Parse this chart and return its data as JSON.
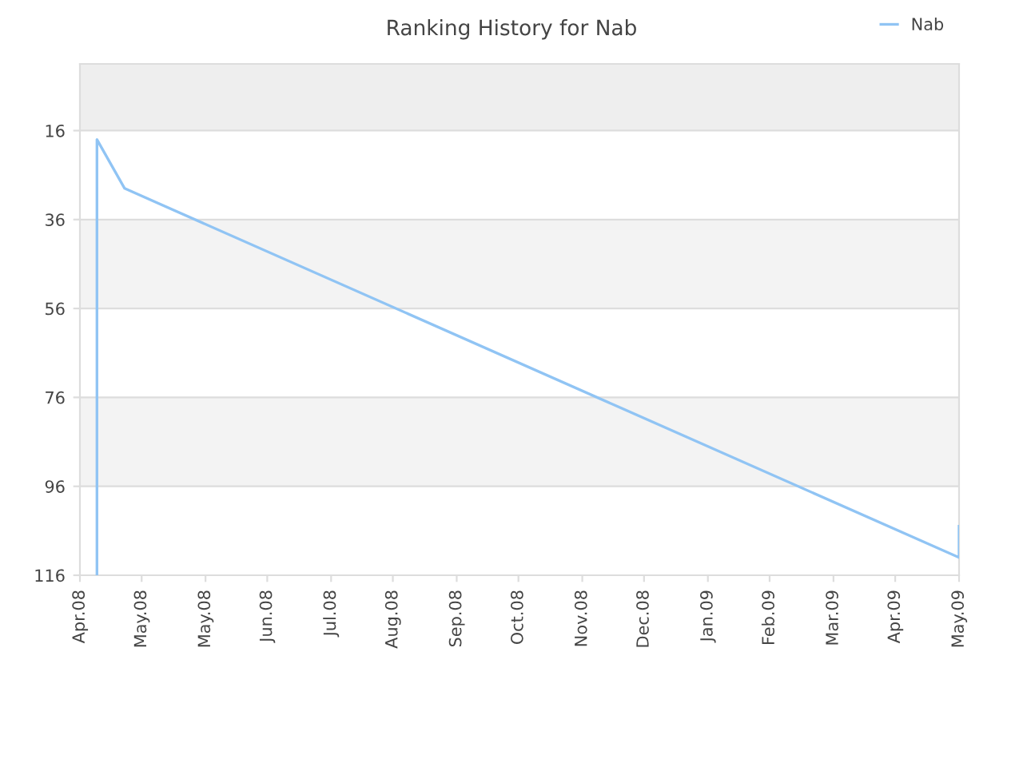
{
  "chart_data": {
    "type": "line",
    "title": "Ranking History for Nab",
    "x": [
      "2008-04-10",
      "2008-04-10",
      "2008-04-23",
      "2009-05-20",
      "2009-05-20"
    ],
    "series": [
      {
        "name": "Nab",
        "color": "#90c4f4",
        "values": [
          116,
          18,
          29,
          112,
          105
        ]
      }
    ],
    "xlim": [
      "2008-04-02",
      "2009-05-20"
    ],
    "xticks": [
      {
        "value": "2008-04-02",
        "label": "Apr.08"
      },
      {
        "value": "2008-05-01",
        "label": "May.08"
      },
      {
        "value": "2008-05-31",
        "label": "May.08"
      },
      {
        "value": "2008-06-29",
        "label": "Jun.08"
      },
      {
        "value": "2008-07-29",
        "label": "Jul.08"
      },
      {
        "value": "2008-08-27",
        "label": "Aug.08"
      },
      {
        "value": "2008-09-26",
        "label": "Sep.08"
      },
      {
        "value": "2008-10-25",
        "label": "Oct.08"
      },
      {
        "value": "2008-11-24",
        "label": "Nov.08"
      },
      {
        "value": "2008-12-23",
        "label": "Dec.08"
      },
      {
        "value": "2009-01-22",
        "label": "Jan.09"
      },
      {
        "value": "2009-02-20",
        "label": "Feb.09"
      },
      {
        "value": "2009-03-22",
        "label": "Mar.09"
      },
      {
        "value": "2009-04-20",
        "label": "Apr.09"
      },
      {
        "value": "2009-05-20",
        "label": "May.09"
      }
    ],
    "ylim": [
      116,
      1
    ],
    "yticks": [
      16,
      36,
      56,
      76,
      96,
      116
    ],
    "bands": [
      {
        "axis": "y",
        "from": 1,
        "to": 16,
        "color": "#eeeeee"
      },
      {
        "axis": "y",
        "from": 36,
        "to": 56,
        "color": "#f3f3f3"
      },
      {
        "axis": "y",
        "from": 76,
        "to": 96,
        "color": "#f3f3f3"
      }
    ],
    "grid": "y",
    "legend": "top right",
    "marker": "none",
    "line_style": "solid"
  }
}
